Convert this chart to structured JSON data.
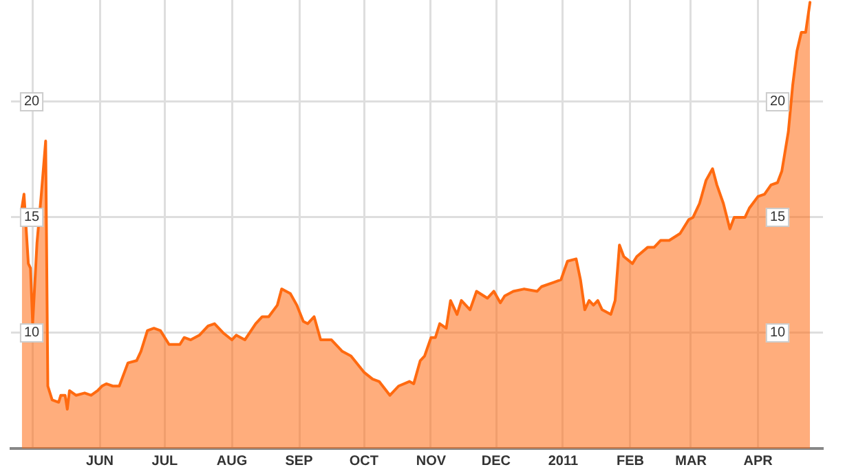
{
  "chart_data": {
    "type": "area",
    "x": [
      "2010-04-26",
      "2010-04-27",
      "2010-04-29",
      "2010-04-30",
      "2010-05-01",
      "2010-05-03",
      "2010-05-05",
      "2010-05-07",
      "2010-05-08",
      "2010-05-10",
      "2010-05-13",
      "2010-05-14",
      "2010-05-16",
      "2010-05-17",
      "2010-05-18",
      "2010-05-21",
      "2010-05-25",
      "2010-05-28",
      "2010-05-31",
      "2010-06-02",
      "2010-06-04",
      "2010-06-07",
      "2010-06-10",
      "2010-06-14",
      "2010-06-18",
      "2010-06-20",
      "2010-06-23",
      "2010-06-26",
      "2010-06-29",
      "2010-07-03",
      "2010-07-08",
      "2010-07-10",
      "2010-07-13",
      "2010-07-17",
      "2010-07-21",
      "2010-07-24",
      "2010-07-28",
      "2010-08-01",
      "2010-08-03",
      "2010-08-07",
      "2010-08-12",
      "2010-08-15",
      "2010-08-18",
      "2010-08-22",
      "2010-08-24",
      "2010-08-28",
      "2010-08-31",
      "2010-09-03",
      "2010-09-05",
      "2010-09-08",
      "2010-09-11",
      "2010-09-16",
      "2010-09-21",
      "2010-09-25",
      "2010-10-01",
      "2010-10-05",
      "2010-10-08",
      "2010-10-13",
      "2010-10-17",
      "2010-10-22",
      "2010-10-24",
      "2010-10-27",
      "2010-10-29",
      "2010-11-01",
      "2010-11-03",
      "2010-11-05",
      "2010-11-08",
      "2010-11-10",
      "2010-11-13",
      "2010-11-15",
      "2010-11-19",
      "2010-11-22",
      "2010-11-27",
      "2010-11-30",
      "2010-12-03",
      "2010-12-05",
      "2010-12-09",
      "2010-12-14",
      "2010-12-20",
      "2010-12-22",
      "2010-12-28",
      "2010-12-31",
      "2011-01-03",
      "2011-01-07",
      "2011-01-09",
      "2011-01-11",
      "2011-01-13",
      "2011-01-15",
      "2011-01-17",
      "2011-01-19",
      "2011-01-23",
      "2011-01-25",
      "2011-01-27",
      "2011-01-29",
      "2011-02-02",
      "2011-02-04",
      "2011-02-09",
      "2011-02-12",
      "2011-02-15",
      "2011-02-19",
      "2011-02-24",
      "2011-02-28",
      "2011-03-02",
      "2011-03-05",
      "2011-03-08",
      "2011-03-11",
      "2011-03-13",
      "2011-03-16",
      "2011-03-19",
      "2011-03-21",
      "2011-03-26",
      "2011-03-28",
      "2011-04-01",
      "2011-04-04",
      "2011-04-07",
      "2011-04-10",
      "2011-04-12",
      "2011-04-15",
      "2011-04-17",
      "2011-04-19",
      "2011-04-21",
      "2011-04-23",
      "2011-04-25"
    ],
    "series": [
      {
        "color": "#ff6a10",
        "values": [
          15.4,
          16.0,
          13.0,
          12.8,
          10.4,
          13.9,
          16.0,
          18.3,
          7.7,
          7.1,
          7.0,
          7.3,
          7.3,
          6.7,
          7.5,
          7.3,
          7.4,
          7.3,
          7.5,
          7.7,
          7.8,
          7.7,
          7.7,
          8.7,
          8.8,
          9.2,
          10.1,
          10.2,
          10.1,
          9.5,
          9.5,
          9.8,
          9.7,
          9.9,
          10.3,
          10.4,
          10.0,
          9.7,
          9.9,
          9.7,
          10.4,
          10.7,
          10.7,
          11.2,
          11.9,
          11.7,
          11.2,
          10.5,
          10.4,
          10.7,
          9.7,
          9.7,
          9.2,
          9.0,
          8.3,
          8.0,
          7.9,
          7.3,
          7.7,
          7.9,
          7.8,
          8.8,
          9.0,
          9.8,
          9.8,
          10.4,
          10.2,
          11.4,
          10.8,
          11.4,
          11.0,
          11.8,
          11.5,
          11.8,
          11.3,
          11.6,
          11.8,
          11.9,
          11.8,
          12.0,
          12.2,
          12.3,
          13.1,
          13.2,
          12.3,
          11.0,
          11.4,
          11.2,
          11.4,
          11.0,
          10.8,
          11.4,
          13.8,
          13.3,
          13.0,
          13.3,
          13.7,
          13.7,
          14.0,
          14.0,
          14.3,
          14.9,
          15.0,
          15.6,
          16.6,
          17.1,
          16.4,
          15.6,
          14.5,
          15.0,
          15.0,
          15.4,
          15.9,
          16.0,
          16.4,
          16.5,
          17.0,
          18.7,
          20.7,
          22.2,
          23.0,
          23.0,
          24.3
        ]
      }
    ],
    "xlim": [
      "2010-04-21",
      "2011-05-01"
    ],
    "xticks": [
      {
        "value": "2010-05-01",
        "label": null
      },
      {
        "value": "2010-06-01",
        "label": "JUN"
      },
      {
        "value": "2010-07-01",
        "label": "JUL"
      },
      {
        "value": "2010-08-01",
        "label": "AUG"
      },
      {
        "value": "2010-09-01",
        "label": "SEP"
      },
      {
        "value": "2010-10-01",
        "label": "OCT"
      },
      {
        "value": "2010-11-01",
        "label": "NOV"
      },
      {
        "value": "2010-12-01",
        "label": "DEC"
      },
      {
        "value": "2011-01-01",
        "label": "2011"
      },
      {
        "value": "2011-02-01",
        "label": "FEB"
      },
      {
        "value": "2011-03-01",
        "label": "MAR"
      },
      {
        "value": "2011-04-01",
        "label": "APR"
      }
    ],
    "ylim": [
      5,
      24.4
    ],
    "yticks": [
      10,
      15,
      20
    ],
    "y2lim": [
      5,
      24.4
    ],
    "y2ticks": [
      10,
      15,
      20
    ],
    "grid": true,
    "legend": false,
    "marker": "none",
    "line_style": "solid"
  }
}
